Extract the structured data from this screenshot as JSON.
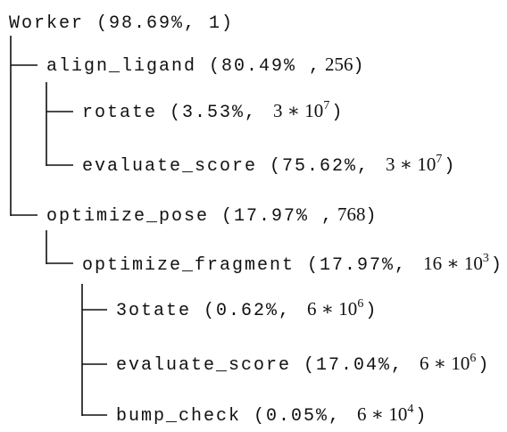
{
  "nodes": [
    {
      "label": "Worker (98.69%, 1)"
    },
    {
      "label": "align_ligand (80.49% ,",
      "math": "256",
      "end": ")"
    },
    {
      "label": "rotate (3.53%, ",
      "math": "3 ∗ 10",
      "exp": "7",
      "end": ")"
    },
    {
      "label": "evaluate_score (75.62%, ",
      "math": "3 ∗ 10",
      "exp": "7",
      "end": ")"
    },
    {
      "label": "optimize_pose (17.97% ,",
      "math": "768",
      "end": ")"
    },
    {
      "label": "optimize_fragment (17.97%, ",
      "math": "16 ∗ 10",
      "exp": "3",
      "end": ")"
    },
    {
      "label": "3otate (0.62%, ",
      "math": "6 ∗ 10",
      "exp": "6",
      "end": ")"
    },
    {
      "label": "evaluate_score (17.04%, ",
      "math": "6 ∗ 10",
      "exp": "6",
      "end": ")"
    },
    {
      "label": "bump_check (0.05%, ",
      "math": "6 ∗ 10",
      "exp": "4",
      "end": ")"
    }
  ]
}
